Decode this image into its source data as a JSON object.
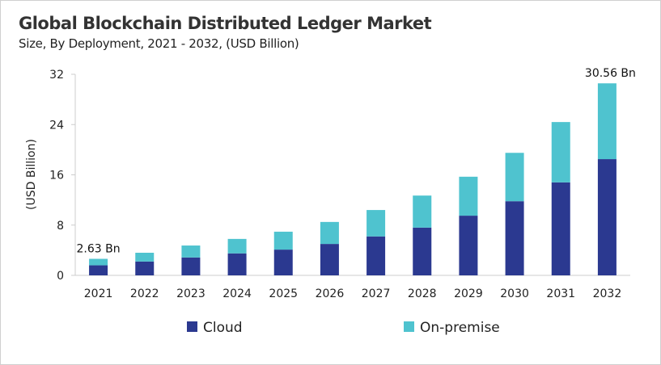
{
  "chart_data": {
    "type": "bar",
    "stacked": true,
    "title": "Global Blockchain Distributed Ledger Market",
    "subtitle": "Size, By Deployment, 2021 - 2032, (USD Billion)",
    "xlabel": "",
    "ylabel": "(USD Billion)",
    "ylim": [
      0,
      32
    ],
    "yticks": [
      0,
      8,
      16,
      24,
      32
    ],
    "grid": false,
    "legend_position": "bottom",
    "categories": [
      "2021",
      "2022",
      "2023",
      "2024",
      "2025",
      "2026",
      "2027",
      "2028",
      "2029",
      "2030",
      "2031",
      "2032"
    ],
    "series": [
      {
        "name": "Cloud",
        "color": "#2b3990",
        "values": [
          1.6,
          2.2,
          2.85,
          3.5,
          4.1,
          5.0,
          6.2,
          7.6,
          9.5,
          11.8,
          14.8,
          18.5
        ]
      },
      {
        "name": "On-premise",
        "color": "#4fc3cf",
        "values": [
          1.03,
          1.4,
          1.9,
          2.3,
          2.85,
          3.5,
          4.2,
          5.1,
          6.2,
          7.7,
          9.6,
          12.06
        ]
      }
    ],
    "annotations": [
      {
        "category": "2021",
        "text": "2.63 Bn"
      },
      {
        "category": "2032",
        "text": "30.56 Bn"
      }
    ]
  }
}
